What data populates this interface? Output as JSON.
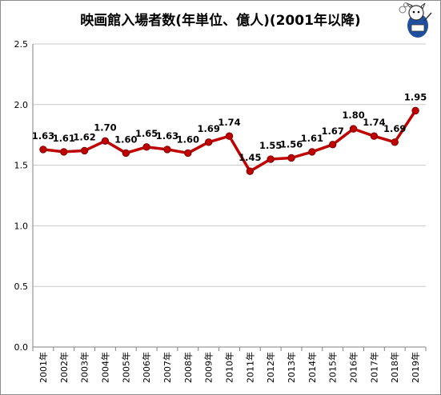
{
  "chart_data": {
    "type": "line",
    "title": "映画館入場者数(年単位、億人)(2001年以降)",
    "xlabel": "",
    "ylabel": "",
    "categories": [
      "2001年",
      "2002年",
      "2003年",
      "2004年",
      "2005年",
      "2006年",
      "2007年",
      "2008年",
      "2009年",
      "2010年",
      "2011年",
      "2012年",
      "2013年",
      "2014年",
      "2015年",
      "2016年",
      "2017年",
      "2018年",
      "2019年"
    ],
    "values": [
      1.63,
      1.61,
      1.62,
      1.7,
      1.6,
      1.65,
      1.63,
      1.6,
      1.69,
      1.74,
      1.45,
      1.55,
      1.56,
      1.61,
      1.67,
      1.8,
      1.74,
      1.69,
      1.95
    ],
    "value_labels": [
      "1.63",
      "1.61",
      "1.62",
      "1.70",
      "1.60",
      "1.65",
      "1.63",
      "1.60",
      "1.69",
      "1.74",
      "1.45",
      "1.55",
      "1.56",
      "1.61",
      "1.67",
      "1.80",
      "1.74",
      "1.69",
      "1.95"
    ],
    "ylim": [
      0,
      2.5
    ],
    "yticks": [
      0.0,
      0.5,
      1.0,
      1.5,
      2.0,
      2.5
    ],
    "ytick_labels": [
      "0.0",
      "0.5",
      "1.0",
      "1.5",
      "2.0",
      "2.5"
    ],
    "grid": true,
    "legend": "none",
    "colors": {
      "line": "#c00000",
      "marker": "#c00000",
      "grid": "#c8c8c8",
      "axis": "#808080"
    }
  }
}
